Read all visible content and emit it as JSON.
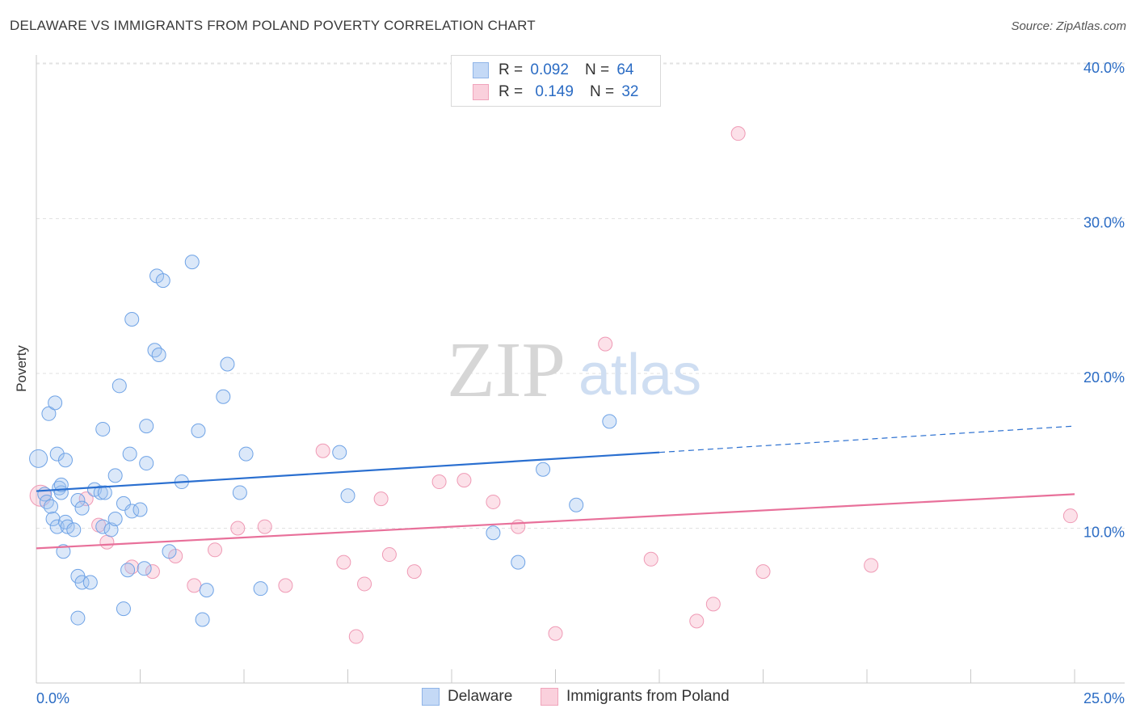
{
  "header": {
    "title": "DELAWARE VS IMMIGRANTS FROM POLAND POVERTY CORRELATION CHART",
    "source": "Source: ZipAtlas.com"
  },
  "watermark": {
    "zip": "ZIP",
    "atlas": "atlas"
  },
  "legend_top": {
    "rows": [
      {
        "r_key": "R =",
        "r_val": "0.092",
        "n_key": "N =",
        "n_val": "64",
        "color": "#a9c8f0"
      },
      {
        "r_key": "R =",
        "r_val": "0.149",
        "n_key": "N =",
        "n_val": "32",
        "color": "#f7b8cb"
      }
    ]
  },
  "legend_bottom": {
    "series1": "Delaware",
    "series2": "Immigrants from Poland"
  },
  "chart_data": {
    "type": "scatter",
    "title": "DELAWARE VS IMMIGRANTS FROM POLAND POVERTY CORRELATION CHART",
    "ylabel": "Poverty",
    "xlabel": "",
    "xlim": [
      0,
      25
    ],
    "ylim": [
      0,
      40
    ],
    "x_tick_labels": [
      "0.0%",
      "25.0%"
    ],
    "y_tick_labels": [
      "10.0%",
      "20.0%",
      "30.0%",
      "40.0%"
    ],
    "y_ticks": [
      10,
      20,
      30,
      40
    ],
    "grid": true,
    "legend_position": "top-center",
    "colors": {
      "delaware": "#6fa3e6",
      "delaware_line": "#2a6fd0",
      "poland": "#f08fae",
      "poland_line": "#e8709a",
      "axis_text": "#2b6cc4"
    },
    "series": [
      {
        "name": "Delaware",
        "r": 0.092,
        "n": 64,
        "trend": {
          "x": [
            0,
            15
          ],
          "y": [
            12.4,
            14.9
          ],
          "dashed_extension": {
            "x": [
              15,
              25
            ],
            "y": [
              14.9,
              16.6
            ]
          }
        },
        "points": [
          [
            0.05,
            14.5
          ],
          [
            0.2,
            12.2
          ],
          [
            0.25,
            11.7
          ],
          [
            0.35,
            11.4
          ],
          [
            0.3,
            17.4
          ],
          [
            0.45,
            18.1
          ],
          [
            0.5,
            14.8
          ],
          [
            0.4,
            10.6
          ],
          [
            0.5,
            10.1
          ],
          [
            0.55,
            12.6
          ],
          [
            0.6,
            12.3
          ],
          [
            0.7,
            10.4
          ],
          [
            0.75,
            10.1
          ],
          [
            0.7,
            14.4
          ],
          [
            0.65,
            8.5
          ],
          [
            0.9,
            9.9
          ],
          [
            1.0,
            11.8
          ],
          [
            1.1,
            11.3
          ],
          [
            1.0,
            6.9
          ],
          [
            1.1,
            6.5
          ],
          [
            1.3,
            6.5
          ],
          [
            1.4,
            12.5
          ],
          [
            1.55,
            12.3
          ],
          [
            1.65,
            12.3
          ],
          [
            1.6,
            10.1
          ],
          [
            1.8,
            9.9
          ],
          [
            1.9,
            10.6
          ],
          [
            1.9,
            13.4
          ],
          [
            2.1,
            11.6
          ],
          [
            2.2,
            7.3
          ],
          [
            2.25,
            14.8
          ],
          [
            2.3,
            11.1
          ],
          [
            2.5,
            11.2
          ],
          [
            2.65,
            14.2
          ],
          [
            2.6,
            7.4
          ],
          [
            2.1,
            4.8
          ],
          [
            2.0,
            19.2
          ],
          [
            2.65,
            16.6
          ],
          [
            2.85,
            21.5
          ],
          [
            2.95,
            21.2
          ],
          [
            2.9,
            26.3
          ],
          [
            3.05,
            26.0
          ],
          [
            3.2,
            8.5
          ],
          [
            3.5,
            13.0
          ],
          [
            3.75,
            27.2
          ],
          [
            3.9,
            16.3
          ],
          [
            4.5,
            18.5
          ],
          [
            4.6,
            20.6
          ],
          [
            4.9,
            12.3
          ],
          [
            5.05,
            14.8
          ],
          [
            5.4,
            6.1
          ],
          [
            4.0,
            4.1
          ],
          [
            2.3,
            23.5
          ],
          [
            1.6,
            16.4
          ],
          [
            1.0,
            4.2
          ],
          [
            4.1,
            6.0
          ],
          [
            0.6,
            12.8
          ],
          [
            7.3,
            14.9
          ],
          [
            7.5,
            12.1
          ],
          [
            11.0,
            9.7
          ],
          [
            11.6,
            7.8
          ],
          [
            12.2,
            13.8
          ],
          [
            13.0,
            11.5
          ],
          [
            13.8,
            16.9
          ]
        ]
      },
      {
        "name": "Immigrants from Poland",
        "r": 0.149,
        "n": 32,
        "trend": {
          "x": [
            0,
            25
          ],
          "y": [
            8.7,
            12.2
          ]
        },
        "points": [
          [
            0.1,
            12.1
          ],
          [
            1.2,
            11.9
          ],
          [
            1.5,
            10.2
          ],
          [
            1.7,
            9.1
          ],
          [
            2.3,
            7.5
          ],
          [
            2.8,
            7.2
          ],
          [
            3.35,
            8.2
          ],
          [
            3.8,
            6.3
          ],
          [
            4.3,
            8.6
          ],
          [
            4.85,
            10.0
          ],
          [
            5.5,
            10.1
          ],
          [
            6.0,
            6.3
          ],
          [
            6.9,
            15.0
          ],
          [
            7.4,
            7.8
          ],
          [
            7.7,
            3.0
          ],
          [
            7.9,
            6.4
          ],
          [
            8.3,
            11.9
          ],
          [
            8.5,
            8.3
          ],
          [
            9.1,
            7.2
          ],
          [
            9.7,
            13.0
          ],
          [
            10.3,
            13.1
          ],
          [
            11.0,
            11.7
          ],
          [
            11.6,
            10.1
          ],
          [
            12.5,
            3.2
          ],
          [
            13.7,
            21.9
          ],
          [
            14.8,
            8.0
          ],
          [
            15.9,
            4.0
          ],
          [
            16.3,
            5.1
          ],
          [
            16.9,
            35.5
          ],
          [
            17.5,
            7.2
          ],
          [
            20.1,
            7.6
          ],
          [
            24.9,
            10.8
          ]
        ]
      }
    ]
  }
}
